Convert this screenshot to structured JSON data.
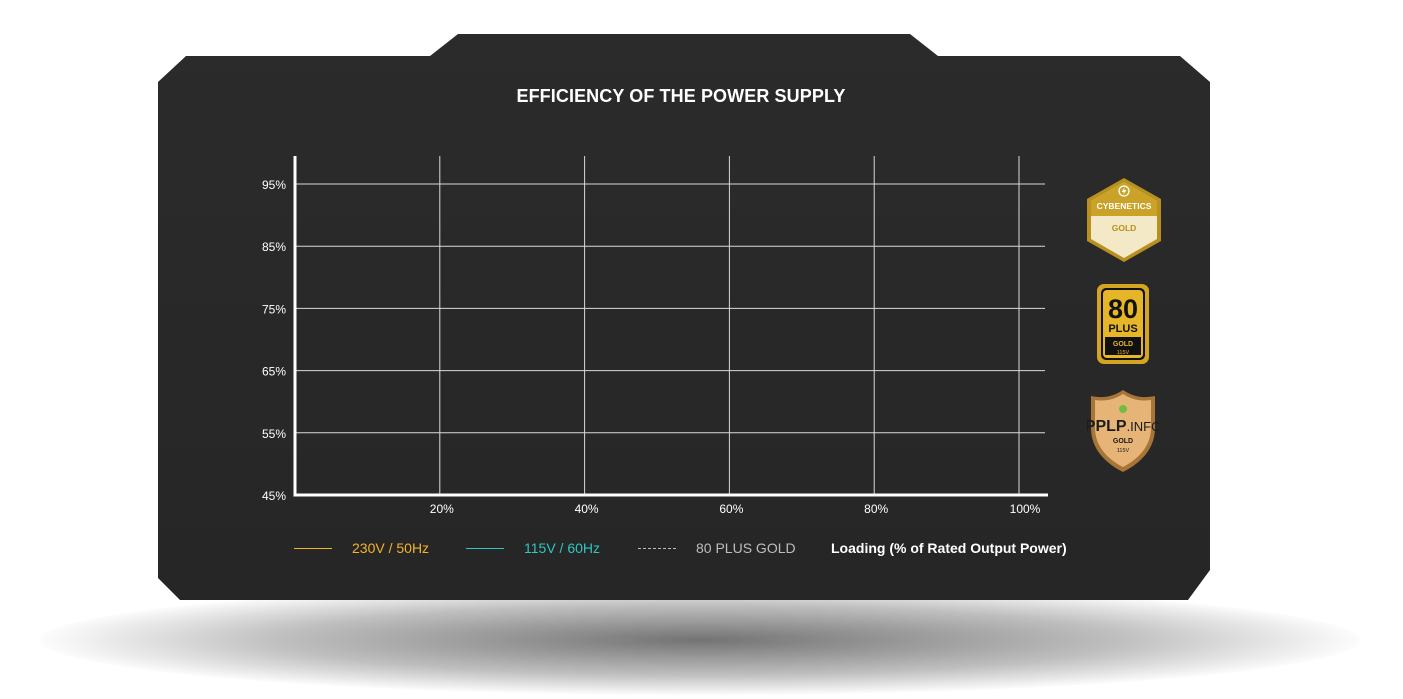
{
  "chart_data": {
    "type": "line",
    "title": "EFFICIENCY OF THE POWER SUPPLY",
    "xlabel": "Loading (% of Rated Output Power)",
    "ylabel": "",
    "x_ticks": [
      "20%",
      "40%",
      "60%",
      "80%",
      "100%"
    ],
    "x_tick_values": [
      20,
      40,
      60,
      80,
      100
    ],
    "y_ticks": [
      "95%",
      "85%",
      "75%",
      "65%",
      "55%",
      "45%"
    ],
    "y_tick_values": [
      95,
      85,
      75,
      65,
      55,
      45
    ],
    "xlim": [
      0,
      100
    ],
    "ylim": [
      45,
      100
    ],
    "grid": true,
    "series": [
      {
        "name": "230V / 50Hz",
        "color": "#f3b428",
        "style": "solid",
        "x": [],
        "values": []
      },
      {
        "name": "115V / 60Hz",
        "color": "#2fc6c0",
        "style": "solid",
        "x": [],
        "values": []
      },
      {
        "name": "80 PLUS GOLD",
        "color": "#bdbdbd",
        "style": "dashed",
        "x": [],
        "values": []
      }
    ],
    "legend_position": "bottom"
  },
  "badges": [
    {
      "icon": "lightning-icon",
      "line1": "CYBENETICS",
      "line2": "GOLD",
      "color": "#c9a227"
    },
    {
      "line1": "80",
      "line2": "PLUS",
      "line3": "GOLD",
      "line4": "115V",
      "color": "#d4a521"
    },
    {
      "line1": "PPLP",
      "line2": ".INFO",
      "line3": "GOLD",
      "line4": "115V",
      "color": "#c9975a"
    }
  ]
}
